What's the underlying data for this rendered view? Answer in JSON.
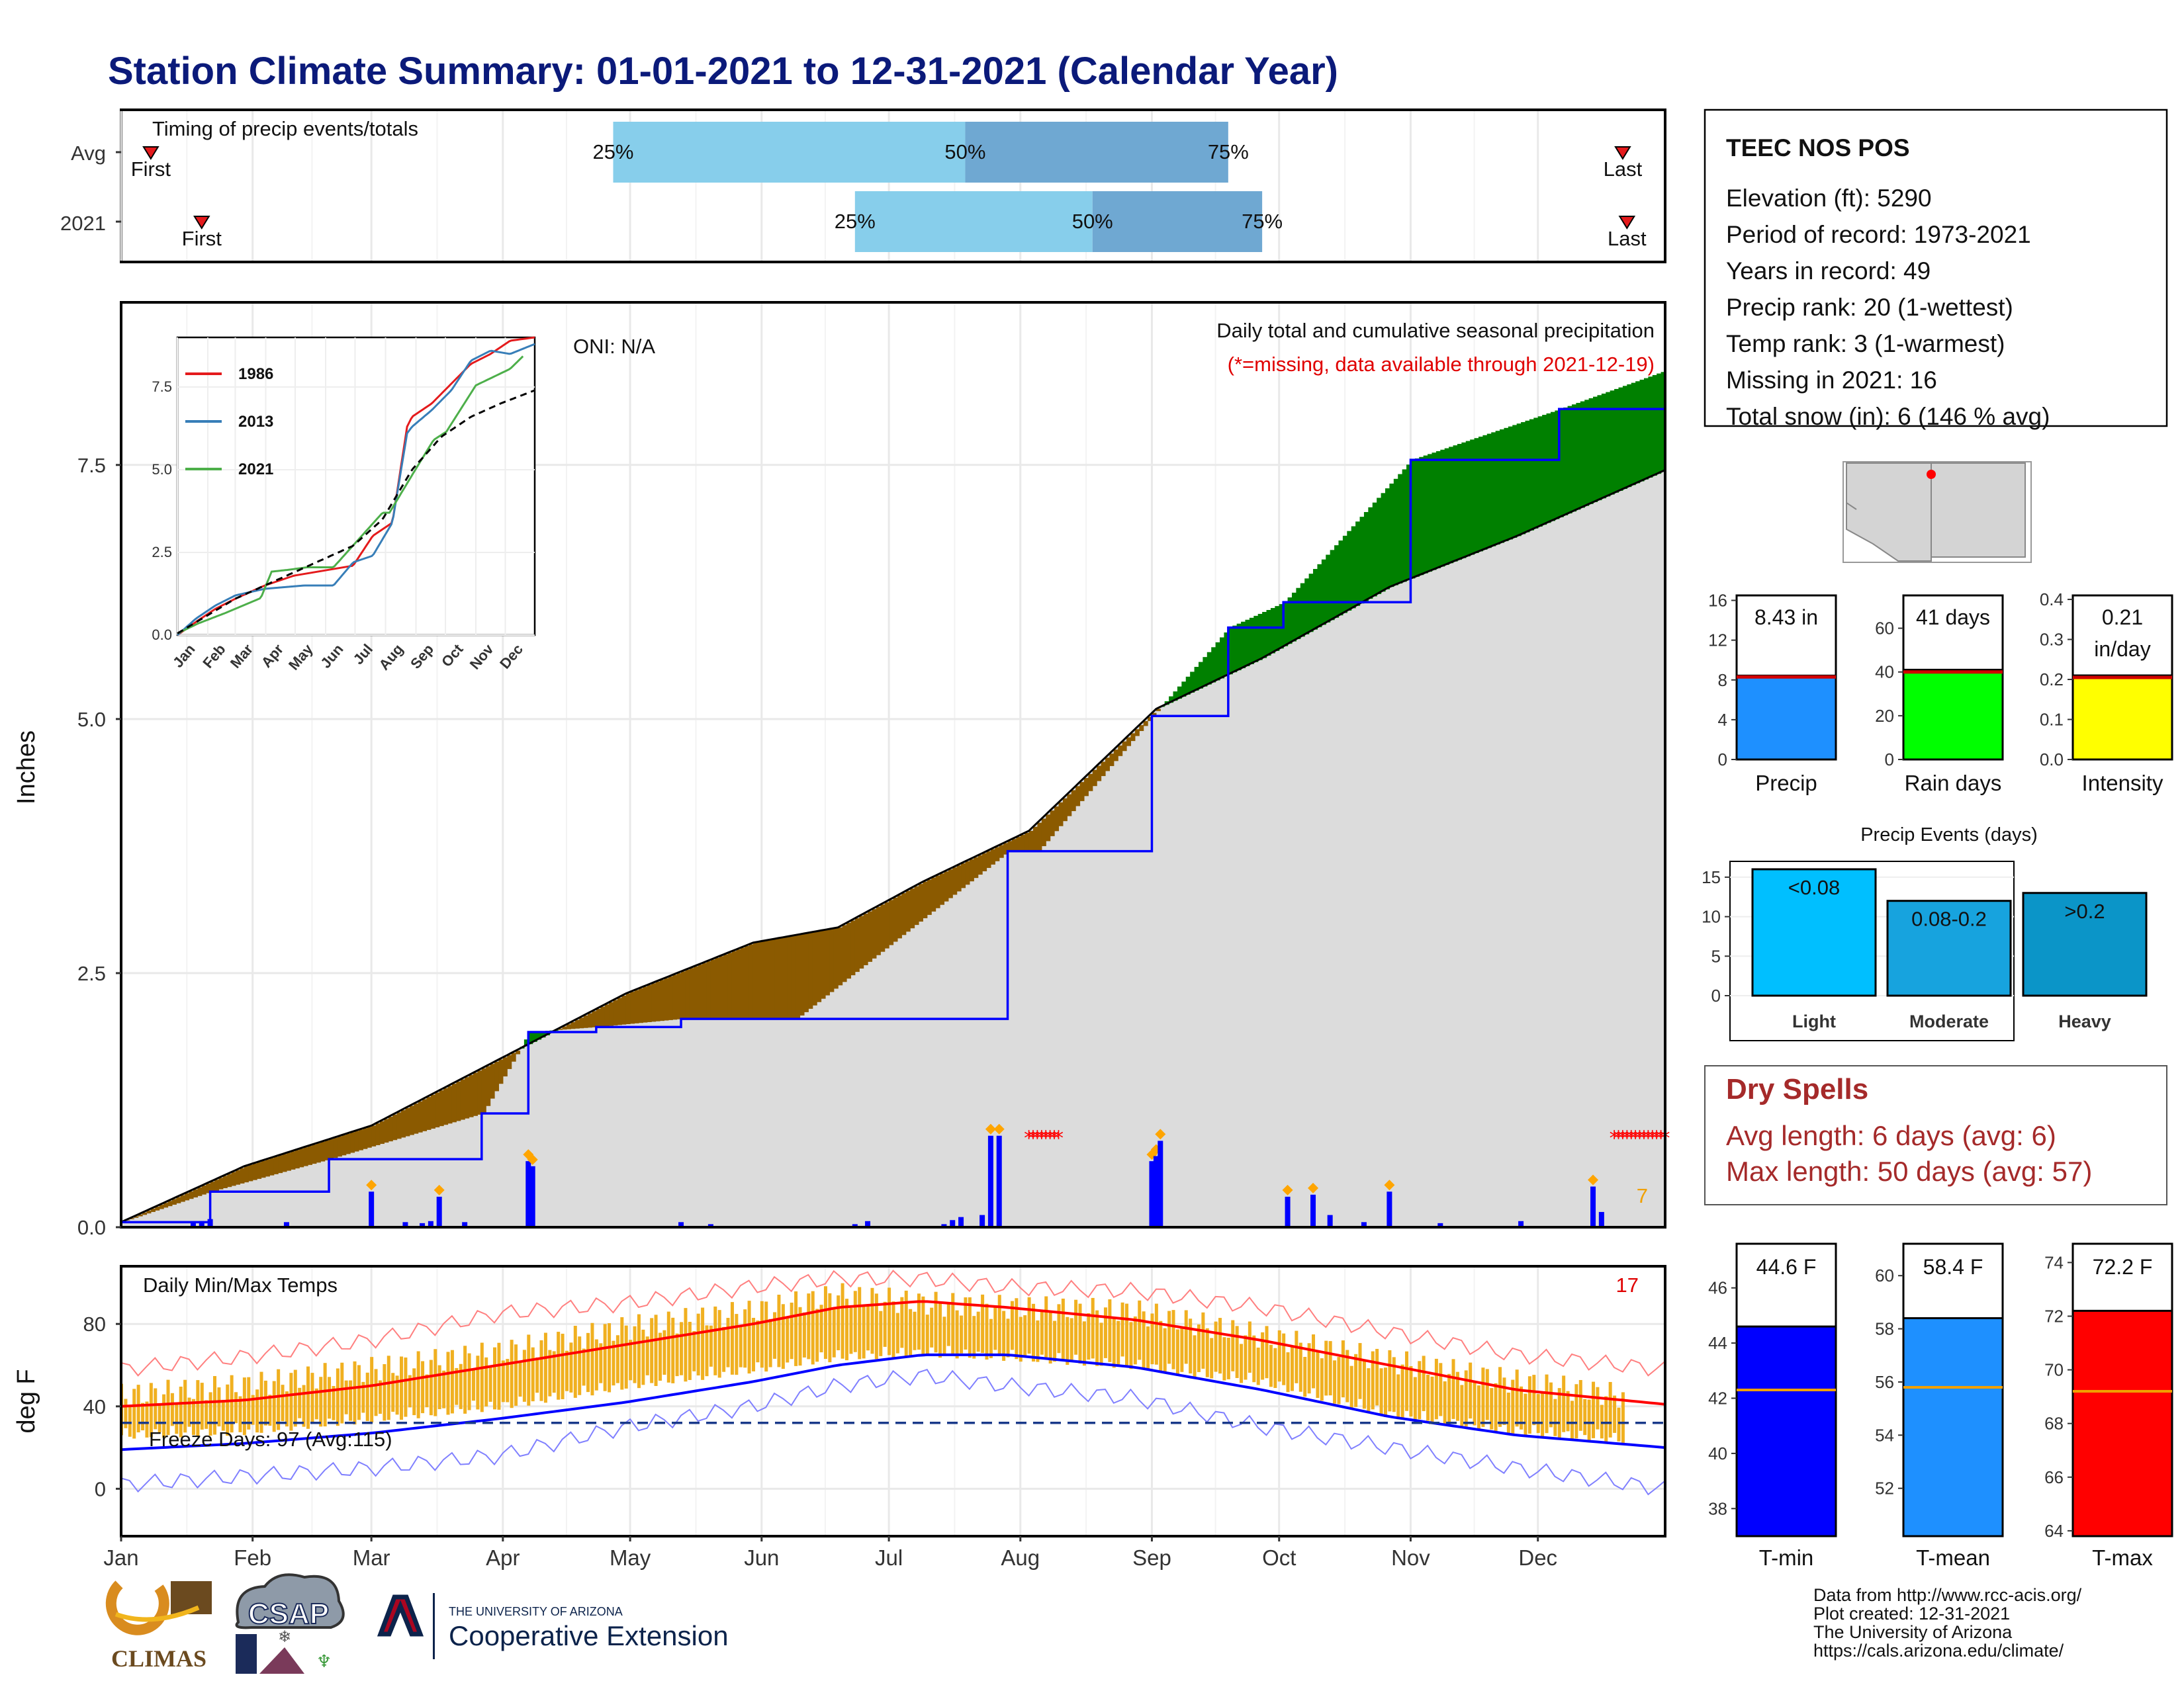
{
  "title": "Station Climate Summary: 01-01-2021 to 12-31-2021 (Calendar Year)",
  "months": [
    "Jan",
    "Feb",
    "Mar",
    "Apr",
    "May",
    "Jun",
    "Jul",
    "Aug",
    "Sep",
    "Oct",
    "Nov",
    "Dec"
  ],
  "timing": {
    "title": "Timing of precip events/totals",
    "rows": [
      {
        "label": "Avg",
        "first_label": "First",
        "last_label": "Last",
        "first_doy": 8,
        "last_doy": 355,
        "q25_label": "25%",
        "q50_label": "50%",
        "q75_label": "75%",
        "q25_doy": 117,
        "q50_doy": 200,
        "q75_doy": 262
      },
      {
        "label": "2021",
        "first_label": "First",
        "last_label": "Last",
        "first_doy": 20,
        "last_doy": 356,
        "q25_label": "25%",
        "q50_label": "50%",
        "q75_label": "75%",
        "q25_doy": 174,
        "q50_doy": 230,
        "q75_doy": 270
      }
    ]
  },
  "precip_panel": {
    "ylabel": "Inches",
    "yticks": [
      "0.0",
      "2.5",
      "5.0",
      "7.5"
    ],
    "oni": "ONI: N/A",
    "title": "Daily total and cumulative seasonal precipitation",
    "missing_note": "(*=missing, data available through 2021-12-19)",
    "count_label": "7"
  },
  "inset": {
    "yticks": [
      "0.0",
      "2.5",
      "5.0",
      "7.5"
    ],
    "months": [
      "Jan",
      "Feb",
      "Mar",
      "Apr",
      "May",
      "Jun",
      "Jul",
      "Aug",
      "Sep",
      "Oct",
      "Nov",
      "Dec"
    ],
    "legend": [
      {
        "name": "1986",
        "color": "#e41a1c"
      },
      {
        "name": "2013",
        "color": "#377eb8"
      },
      {
        "name": "2021",
        "color": "#4daf4a"
      }
    ]
  },
  "temp_panel": {
    "ylabel": "deg F",
    "title": "Daily Min/Max Temps",
    "count_label": "17",
    "freeze_label": "Freeze Days: 97 (Avg:115)",
    "yticks": [
      "0",
      "40",
      "80"
    ]
  },
  "station": {
    "name": "TEEC NOS POS",
    "lines": [
      "Elevation (ft): 5290",
      "Period of record: 1973-2021",
      "Years in record: 49",
      "Precip rank: 20 (1-wettest)",
      "Temp rank: 3 (1-warmest)",
      "Missing in 2021: 16",
      "Total snow (in): 6 (146 % avg)"
    ]
  },
  "precip_stats": [
    {
      "label": "Precip",
      "value_text": "8.43 in",
      "value": 8.43,
      "avg": 8.3,
      "ymax": 16.5,
      "ticks": [
        "0",
        "4",
        "8",
        "12",
        "16"
      ],
      "tick_values": [
        0,
        4,
        8,
        12,
        16
      ],
      "color": "#1e90ff"
    },
    {
      "label": "Rain days",
      "value_text": "41 days",
      "value": 41,
      "avg": 40,
      "ymax": 75,
      "ticks": [
        "0",
        "20",
        "40",
        "60"
      ],
      "tick_values": [
        0,
        20,
        40,
        60
      ],
      "color": "#00ff00"
    },
    {
      "label": "Intensity",
      "value_text": "0.21",
      "value_text2": "in/day",
      "value": 0.21,
      "avg": 0.205,
      "ymax": 0.41,
      "ticks": [
        "0.0",
        "0.1",
        "0.2",
        "0.3",
        "0.4"
      ],
      "tick_values": [
        0,
        0.1,
        0.2,
        0.3,
        0.4
      ],
      "color": "#ffff00"
    }
  ],
  "precip_events": {
    "title": "Precip Events (days)",
    "yticks": [
      "0",
      "5",
      "10",
      "15"
    ],
    "bars": [
      {
        "category": "Light",
        "label": "<0.08",
        "value": 16,
        "color": "#00bfff"
      },
      {
        "category": "Moderate",
        "label": "0.08-0.2",
        "value": 12,
        "color": "#17a3de"
      },
      {
        "category": "Heavy",
        "label": ">0.2",
        "value": 13,
        "color": "#0b95c8"
      }
    ]
  },
  "dry_spells": {
    "title": "Dry Spells",
    "avg_line": "Avg length: 6 days (avg: 6)",
    "max_line": "Max length: 50 days (avg: 57)"
  },
  "temp_stats": [
    {
      "label": "T-min",
      "value_text": "44.6 F",
      "value": 44.6,
      "avg": 42.3,
      "ymin": 37,
      "ymax": 47.6,
      "ticks": [
        "38",
        "40",
        "42",
        "44",
        "46"
      ],
      "tick_values": [
        38,
        40,
        42,
        44,
        46
      ],
      "color": "#0000ff"
    },
    {
      "label": "T-mean",
      "value_text": "58.4 F",
      "value": 58.4,
      "avg": 55.8,
      "ymin": 50.2,
      "ymax": 61.2,
      "ticks": [
        "52",
        "54",
        "56",
        "58",
        "60"
      ],
      "tick_values": [
        52,
        54,
        56,
        58,
        60
      ],
      "color": "#1e90ff"
    },
    {
      "label": "T-max",
      "value_text": "72.2 F",
      "value": 72.2,
      "avg": 69.2,
      "ymin": 63.8,
      "ymax": 74.7,
      "ticks": [
        "64",
        "66",
        "68",
        "70",
        "72",
        "74"
      ],
      "tick_values": [
        64,
        66,
        68,
        70,
        72,
        74
      ],
      "color": "#ff0000"
    }
  ],
  "credits": [
    "Data from http://www.rcc-acis.org/",
    "Plot created: 12-31-2021",
    "The University of Arizona",
    "https://cals.arizona.edu/climate/"
  ],
  "logos": {
    "climas": "CLIMAS",
    "csap": "CSAP",
    "ua_small": "THE UNIVERSITY OF ARIZONA",
    "ua_big": "Cooperative Extension"
  },
  "chart_data": [
    {
      "type": "area",
      "title": "Daily total and cumulative seasonal precipitation",
      "ylabel": "Inches",
      "ylim": [
        0,
        9.1
      ],
      "x_units": "day of year (2021)",
      "series": [
        {
          "name": "2021",
          "x": [
            1,
            22,
            50,
            86,
            97,
            113,
            133,
            160,
            210,
            217,
            244,
            262,
            275,
            305,
            340,
            365
          ],
          "y": [
            0.05,
            0.35,
            0.67,
            1.12,
            1.92,
            1.97,
            2.05,
            2.05,
            3.7,
            3.7,
            5.03,
            5.9,
            6.15,
            7.55,
            8.05,
            8.43
          ]
        },
        {
          "x": [
            1,
            30,
            60,
            90,
            120,
            150,
            170,
            190,
            215,
            230,
            245,
            270,
            300,
            330,
            365
          ],
          "y": [
            0.05,
            0.6,
            1.0,
            1.65,
            2.3,
            2.8,
            2.95,
            3.4,
            3.9,
            4.5,
            5.1,
            5.6,
            6.3,
            6.8,
            7.45
          ]
        }
      ],
      "daily_bars": {
        "x": [
          18,
          20,
          22,
          40,
          60,
          68,
          72,
          74,
          76,
          82,
          97,
          98,
          133,
          140,
          174,
          177,
          195,
          197,
          199,
          204,
          206,
          208,
          244,
          245,
          246,
          276,
          282,
          286,
          294,
          300,
          312,
          331,
          348,
          350
        ],
        "y": [
          0.05,
          0.06,
          0.08,
          0.05,
          0.35,
          0.05,
          0.04,
          0.06,
          0.3,
          0.05,
          0.65,
          0.6,
          0.05,
          0.03,
          0.03,
          0.06,
          0.03,
          0.07,
          0.1,
          0.12,
          0.9,
          0.9,
          0.65,
          0.7,
          0.85,
          0.3,
          0.32,
          0.12,
          0.05,
          0.35,
          0.04,
          0.06,
          0.4,
          0.15
        ]
      },
      "missing_days": [
        215,
        216,
        217,
        218,
        219,
        220,
        221,
        222,
        353,
        354,
        355,
        356,
        357,
        358,
        359,
        360,
        361,
        362,
        363,
        364,
        365
      ]
    },
    {
      "type": "line",
      "title": "",
      "ylim": [
        0,
        9
      ],
      "x_units": "day of year",
      "series": [
        {
          "name": "1986",
          "x": [
            1,
            20,
            40,
            60,
            90,
            120,
            160,
            180,
            200,
            220,
            235,
            240,
            260,
            280,
            300,
            320,
            340,
            365
          ],
          "y": [
            0,
            0.4,
            0.8,
            1.1,
            1.5,
            1.8,
            2.0,
            2.1,
            3.0,
            3.4,
            6.3,
            6.6,
            7.0,
            7.6,
            8.2,
            8.5,
            8.9,
            9.0
          ]
        },
        {
          "name": "2013",
          "x": [
            1,
            20,
            40,
            60,
            90,
            130,
            160,
            180,
            200,
            220,
            235,
            240,
            260,
            280,
            300,
            320,
            340,
            365
          ],
          "y": [
            0,
            0.5,
            0.9,
            1.2,
            1.4,
            1.5,
            1.5,
            2.2,
            2.4,
            3.4,
            6.1,
            6.3,
            6.8,
            7.4,
            8.3,
            8.6,
            8.5,
            8.8
          ]
        },
        {
          "name": "2021",
          "x": [
            1,
            22,
            50,
            86,
            97,
            113,
            133,
            160,
            210,
            217,
            244,
            262,
            275,
            305,
            340,
            353
          ],
          "y": [
            0.05,
            0.35,
            0.67,
            1.12,
            1.92,
            1.97,
            2.05,
            2.05,
            3.7,
            3.7,
            5.03,
            5.9,
            6.15,
            7.55,
            8.05,
            8.43
          ]
        },
        {
          "x": [
            1,
            60,
            120,
            180,
            210,
            240,
            270,
            300,
            330,
            365
          ],
          "y": [
            0.05,
            1.1,
            1.9,
            2.7,
            3.5,
            5.0,
            6.0,
            6.6,
            7.0,
            7.4
          ]
        }
      ]
    },
    {
      "type": "line",
      "title": "Daily Min/Max Temps",
      "ylabel": "deg F",
      "ylim": [
        -23,
        108
      ],
      "x_units": "day of year (2021)",
      "series": [
        {
          "x": [
            1,
            30,
            60,
            90,
            120,
            150,
            170,
            190,
            210,
            240,
            270,
            300,
            330,
            365
          ],
          "y": [
            40,
            43,
            50,
            60,
            70,
            80,
            88,
            91,
            88,
            82,
            72,
            60,
            48,
            41
          ]
        },
        {
          "x": [
            1,
            30,
            60,
            90,
            120,
            150,
            170,
            190,
            210,
            240,
            270,
            300,
            330,
            365
          ],
          "y": [
            19,
            22,
            27,
            34,
            42,
            52,
            60,
            65,
            65,
            59,
            48,
            35,
            26,
            20
          ]
        },
        {
          "x": [
            1,
            30,
            60,
            90,
            120,
            150,
            170,
            190,
            210,
            240,
            270,
            300,
            330,
            365
          ],
          "y": [
            58,
            64,
            72,
            85,
            90,
            98,
            102,
            102,
            98,
            96,
            88,
            76,
            65,
            58
          ]
        },
        {
          "x": [
            1,
            30,
            60,
            90,
            120,
            150,
            170,
            190,
            210,
            240,
            270,
            300,
            330,
            365
          ],
          "y": [
            2,
            6,
            10,
            16,
            30,
            40,
            50,
            55,
            50,
            44,
            30,
            20,
            10,
            0
          ]
        }
      ],
      "freeze_line_y": 32,
      "hi_bars": {
        "x": [
          1,
          30,
          60,
          90,
          120,
          150,
          170,
          190,
          210,
          240,
          270,
          300,
          330,
          355
        ],
        "y": [
          45,
          50,
          58,
          66,
          78,
          86,
          94,
          90,
          88,
          86,
          74,
          62,
          52,
          45
        ]
      },
      "lo_bars": {
        "x": [
          1,
          30,
          60,
          90,
          120,
          150,
          170,
          190,
          210,
          240,
          270,
          300,
          330,
          355
        ],
        "y": [
          30,
          32,
          38,
          44,
          54,
          62,
          68,
          70,
          68,
          64,
          56,
          40,
          32,
          28
        ]
      }
    }
  ]
}
